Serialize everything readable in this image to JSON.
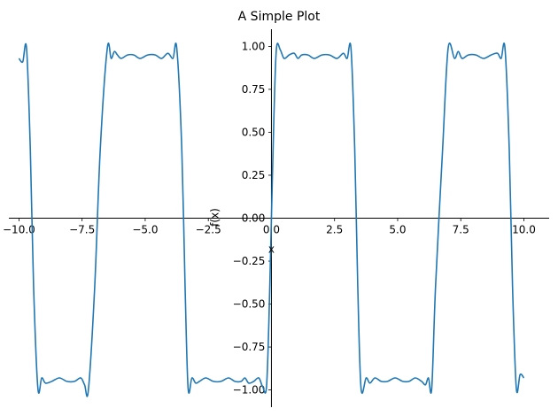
{
  "chart_data": {
    "type": "line",
    "title": "A Simple Plot",
    "xlabel": "x",
    "ylabel": "f(x)",
    "xlim": [
      -10.4,
      11.0
    ],
    "ylim": [
      -1.1,
      1.1
    ],
    "grid": false,
    "x_ticks": [
      {
        "value": -10.0,
        "label": "−10.0"
      },
      {
        "value": -7.5,
        "label": "−7.5"
      },
      {
        "value": -5.0,
        "label": "−5.0"
      },
      {
        "value": -2.5,
        "label": "−2.5"
      },
      {
        "value": 0.0,
        "label": "0.0"
      },
      {
        "value": 2.5,
        "label": "2.5"
      },
      {
        "value": 5.0,
        "label": "5.0"
      },
      {
        "value": 7.5,
        "label": "7.5"
      },
      {
        "value": 10.0,
        "label": "10.0"
      }
    ],
    "y_ticks": [
      {
        "value": -1.0,
        "label": "−1.00"
      },
      {
        "value": -0.75,
        "label": "−0.75"
      },
      {
        "value": -0.5,
        "label": "−0.50"
      },
      {
        "value": -0.25,
        "label": "−0.25"
      },
      {
        "value": 0.0,
        "label": "0.00"
      },
      {
        "value": 0.25,
        "label": "0.25"
      },
      {
        "value": 0.5,
        "label": "0.50"
      },
      {
        "value": 0.75,
        "label": "0.75"
      },
      {
        "value": 1.0,
        "label": "1.00"
      }
    ],
    "series": [
      {
        "color": "#1f77b4",
        "x": [
          -10.0,
          -9.85,
          -9.7,
          -9.55,
          -9.42,
          -9.25,
          -9.1,
          -8.95,
          -8.7,
          -8.4,
          -8.1,
          -7.8,
          -7.55,
          -7.4,
          -7.25,
          -7.0,
          -6.78,
          -6.5,
          -6.35,
          -6.22,
          -6.1,
          -5.95,
          -5.7,
          -5.45,
          -5.2,
          -4.9,
          -4.6,
          -4.35,
          -4.1,
          -3.9,
          -3.75,
          -3.55,
          -3.42,
          -3.3,
          -3.15,
          -3.0,
          -2.85,
          -2.6,
          -2.3,
          -2.0,
          -1.7,
          -1.45,
          -1.2,
          -1.05,
          -0.9,
          -0.7,
          -0.5,
          -0.35,
          -0.2,
          -0.1,
          0.0,
          0.1,
          0.2,
          0.35,
          0.5,
          0.7,
          0.9,
          1.05,
          1.2,
          1.45,
          1.7,
          2.0,
          2.3,
          2.6,
          2.85,
          3.0,
          3.15,
          3.3,
          3.42,
          3.55,
          3.75,
          3.9,
          4.1,
          4.35,
          4.6,
          4.9,
          5.2,
          5.45,
          5.7,
          5.95,
          6.1,
          6.22,
          6.35,
          6.5,
          6.78,
          7.0,
          7.25,
          7.4,
          7.55,
          7.8,
          8.1,
          8.4,
          8.7,
          8.95,
          9.1,
          9.25,
          9.42,
          9.55,
          9.7,
          9.85,
          10.0
        ],
        "y": [
          0.93,
          0.91,
          0.99,
          0.4,
          -0.4,
          -0.99,
          -0.93,
          -0.96,
          -0.95,
          -0.93,
          -0.95,
          -0.95,
          -0.93,
          -0.97,
          -1.0,
          -0.4,
          0.4,
          0.99,
          0.93,
          0.97,
          0.95,
          0.93,
          0.95,
          0.95,
          0.93,
          0.95,
          0.95,
          0.93,
          0.96,
          0.93,
          0.99,
          0.4,
          -0.4,
          -0.99,
          -0.93,
          -0.96,
          -0.95,
          -0.93,
          -0.95,
          -0.95,
          -0.93,
          -0.95,
          -0.95,
          -0.93,
          -0.96,
          -0.95,
          -0.93,
          -0.98,
          -0.99,
          -0.6,
          0.0,
          0.6,
          0.99,
          0.98,
          0.93,
          0.95,
          0.96,
          0.93,
          0.95,
          0.95,
          0.93,
          0.95,
          0.95,
          0.93,
          0.96,
          0.93,
          0.99,
          0.4,
          -0.4,
          -0.99,
          -0.93,
          -0.96,
          -0.93,
          -0.95,
          -0.95,
          -0.93,
          -0.95,
          -0.95,
          -0.93,
          -0.95,
          -0.97,
          -0.93,
          -0.99,
          -0.4,
          0.4,
          0.99,
          0.93,
          0.97,
          0.93,
          0.95,
          0.95,
          0.93,
          0.95,
          0.96,
          0.93,
          0.99,
          0.4,
          -0.4,
          -0.99,
          -0.91,
          -0.93
        ]
      }
    ]
  }
}
